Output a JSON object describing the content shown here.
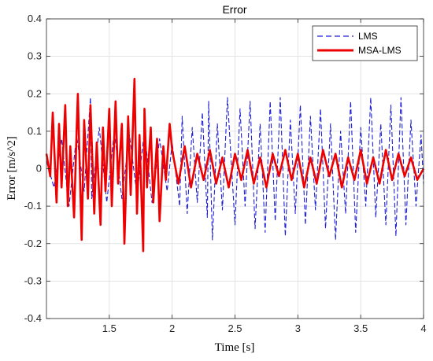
{
  "chart_data": {
    "type": "line",
    "title": "Error",
    "xlabel": "Time [s]",
    "ylabel": "Error [m/s^2]",
    "xlim": [
      1,
      4
    ],
    "ylim": [
      -0.4,
      0.4
    ],
    "xticks": [
      1.5,
      2,
      2.5,
      3,
      3.5,
      4
    ],
    "xtick_labels": [
      "1.5",
      "2",
      "2.5",
      "3",
      "3.5",
      "4"
    ],
    "yticks": [
      -0.4,
      -0.3,
      -0.2,
      -0.1,
      0,
      0.1,
      0.2,
      0.3,
      0.4
    ],
    "ytick_labels": [
      "-0.4",
      "-0.3",
      "-0.2",
      "-0.1",
      "0",
      "0.1",
      "0.2",
      "0.3",
      "0.4"
    ],
    "grid": true,
    "legend_position": "top-right",
    "series": [
      {
        "name": "LMS",
        "style": "dashed",
        "color": "#1f1fd6",
        "x": [
          1.0,
          1.06,
          1.12,
          1.18,
          1.24,
          1.3,
          1.35,
          1.36,
          1.42,
          1.48,
          1.54,
          1.6,
          1.66,
          1.72,
          1.78,
          1.84,
          1.9,
          1.96,
          2.0,
          2.06,
          2.08,
          2.12,
          2.16,
          2.2,
          2.24,
          2.28,
          2.29,
          2.32,
          2.36,
          2.4,
          2.44,
          2.5,
          2.54,
          2.58,
          2.62,
          2.66,
          2.7,
          2.74,
          2.78,
          2.82,
          2.86,
          2.9,
          2.94,
          2.98,
          3.02,
          3.06,
          3.1,
          3.14,
          3.18,
          3.22,
          3.26,
          3.3,
          3.34,
          3.38,
          3.42,
          3.46,
          3.5,
          3.54,
          3.58,
          3.62,
          3.66,
          3.7,
          3.74,
          3.78,
          3.82,
          3.86,
          3.9,
          3.94,
          3.98,
          4.0
        ],
        "y": [
          0.02,
          -0.05,
          0.08,
          -0.1,
          0.09,
          -0.06,
          0.19,
          -0.08,
          0.11,
          -0.09,
          0.1,
          -0.08,
          0.09,
          -0.07,
          0.1,
          -0.09,
          0.08,
          -0.06,
          0.07,
          -0.1,
          0.14,
          -0.12,
          0.11,
          -0.09,
          0.15,
          -0.13,
          0.18,
          -0.19,
          0.12,
          -0.11,
          0.19,
          -0.15,
          0.16,
          -0.1,
          0.18,
          -0.16,
          0.12,
          -0.17,
          0.18,
          -0.14,
          0.19,
          -0.18,
          0.13,
          -0.12,
          0.17,
          -0.15,
          0.14,
          -0.11,
          0.16,
          -0.16,
          0.12,
          -0.19,
          0.1,
          -0.12,
          0.18,
          -0.17,
          0.11,
          -0.1,
          0.19,
          -0.13,
          0.12,
          -0.15,
          0.17,
          -0.18,
          0.19,
          -0.15,
          0.13,
          -0.1,
          0.09,
          -0.04
        ]
      },
      {
        "name": "MSA-LMS",
        "style": "solid",
        "color": "#ee0000",
        "x": [
          1.0,
          1.03,
          1.05,
          1.08,
          1.1,
          1.12,
          1.15,
          1.17,
          1.19,
          1.22,
          1.24,
          1.25,
          1.28,
          1.3,
          1.33,
          1.35,
          1.38,
          1.4,
          1.43,
          1.45,
          1.47,
          1.5,
          1.52,
          1.55,
          1.57,
          1.6,
          1.62,
          1.65,
          1.67,
          1.7,
          1.72,
          1.74,
          1.77,
          1.78,
          1.8,
          1.83,
          1.85,
          1.88,
          1.9,
          1.93,
          1.95,
          1.98,
          2.0,
          2.05,
          2.1,
          2.15,
          2.2,
          2.25,
          2.3,
          2.35,
          2.4,
          2.45,
          2.5,
          2.55,
          2.6,
          2.65,
          2.7,
          2.75,
          2.8,
          2.85,
          2.9,
          2.95,
          3.0,
          3.05,
          3.1,
          3.15,
          3.2,
          3.25,
          3.3,
          3.35,
          3.4,
          3.45,
          3.5,
          3.55,
          3.6,
          3.65,
          3.7,
          3.75,
          3.8,
          3.85,
          3.9,
          3.95,
          4.0
        ],
        "y": [
          0.04,
          -0.02,
          0.15,
          -0.09,
          0.12,
          -0.05,
          0.17,
          -0.1,
          0.06,
          -0.13,
          0.1,
          0.2,
          -0.19,
          0.13,
          -0.08,
          0.17,
          -0.12,
          0.07,
          -0.15,
          0.11,
          -0.06,
          0.16,
          -0.1,
          0.18,
          -0.04,
          0.12,
          -0.2,
          0.14,
          -0.07,
          0.24,
          -0.12,
          0.09,
          -0.22,
          0.16,
          -0.05,
          0.11,
          -0.09,
          0.08,
          -0.14,
          0.06,
          -0.03,
          0.12,
          0.05,
          -0.04,
          0.06,
          -0.05,
          0.04,
          -0.03,
          0.05,
          -0.04,
          0.03,
          -0.05,
          0.04,
          -0.03,
          0.05,
          -0.04,
          0.03,
          -0.05,
          0.04,
          -0.02,
          0.05,
          -0.03,
          0.04,
          -0.05,
          0.03,
          -0.04,
          0.05,
          -0.02,
          0.04,
          -0.05,
          0.03,
          -0.03,
          0.05,
          -0.04,
          0.03,
          -0.04,
          0.05,
          -0.03,
          0.04,
          -0.02,
          0.03,
          -0.03,
          0.0
        ]
      }
    ]
  }
}
